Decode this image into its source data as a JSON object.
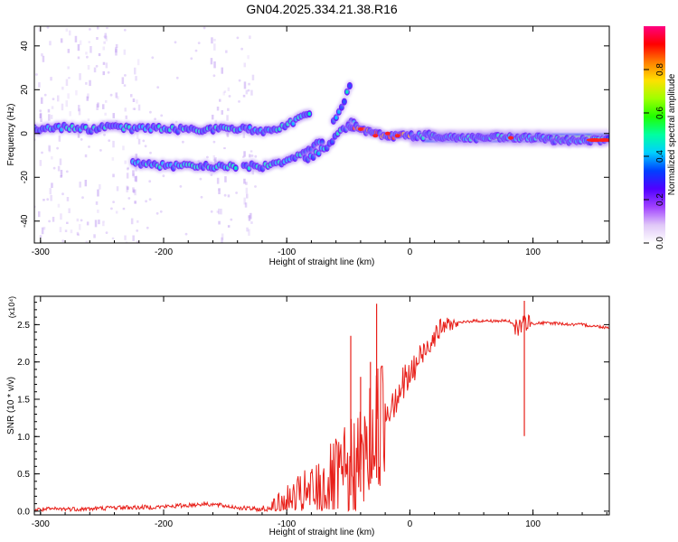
{
  "title": "GN04.2025.334.21.38.R16",
  "chart_data": [
    {
      "type": "heatmap",
      "title": "",
      "xlabel": "Height of straight line (km)",
      "ylabel": "Frequency (Hz)",
      "xlim": [
        -305,
        162
      ],
      "ylim": [
        -50,
        49
      ],
      "x_ticks": [
        -300,
        -200,
        -100,
        0,
        100
      ],
      "y_ticks": [
        -40,
        -20,
        0,
        20,
        40
      ],
      "colorbar": {
        "label": "Normalized spectral amplitude",
        "range": [
          0,
          1
        ],
        "ticks": [
          0.0,
          0.2,
          0.4,
          0.6,
          0.8
        ],
        "tick_labels": [
          "0.0",
          "0.2",
          "0.4",
          "0.6",
          "0.8"
        ],
        "colors": [
          "#ffffff",
          "#e0c8f8",
          "#a040ff",
          "#5000ff",
          "#0040ff",
          "#00d0ff",
          "#00ffa0",
          "#20ff00",
          "#a0ff00",
          "#ffe000",
          "#ff8000",
          "#ff0000",
          "#ff0080"
        ]
      },
      "traces": [
        {
          "name": "",
          "x": [
            -305,
            -280,
            -260,
            -240,
            -225,
            -215,
            -200,
            -185,
            -170,
            -150,
            -140,
            -130
          ],
          "y": [
            2,
            3,
            2,
            3,
            2,
            3,
            2,
            2,
            2,
            2,
            2,
            2
          ]
        },
        {
          "name": "",
          "x": [
            -225,
            -210,
            -195,
            -180,
            -165,
            -150,
            -140
          ],
          "y": [
            -13,
            -14,
            -15,
            -15,
            -15,
            -15,
            -15
          ]
        },
        {
          "name": "",
          "x": [
            -135,
            -120,
            -105,
            -95,
            -85,
            -75,
            -70
          ],
          "y": [
            -15,
            -15,
            -13,
            -11,
            -8,
            -5,
            -3
          ]
        },
        {
          "name": "",
          "x": [
            -130,
            -120,
            -110,
            -100,
            -90,
            -80
          ],
          "y": [
            2,
            1,
            2,
            4,
            7,
            10
          ]
        },
        {
          "name": "",
          "x": [
            -85,
            -75,
            -68,
            -62,
            -58,
            -52,
            -48,
            -44
          ],
          "y": [
            -12,
            -9,
            -6,
            -3,
            0,
            3,
            5,
            4
          ]
        },
        {
          "name": "",
          "x": [
            -62,
            -58,
            -55,
            -52,
            -50,
            -48
          ],
          "y": [
            6,
            9,
            12,
            16,
            20,
            23
          ]
        },
        {
          "name": "",
          "x": [
            -50,
            -40,
            -30,
            -20,
            -10,
            0,
            20,
            40,
            60,
            80,
            100,
            120,
            140,
            162
          ],
          "y": [
            4,
            2,
            0,
            -1,
            -1,
            -1,
            -1,
            -2,
            -2,
            -2,
            -2,
            -3,
            -3,
            -3
          ]
        }
      ]
    },
    {
      "type": "line",
      "title": "",
      "xlabel": "Height of straight line (km)",
      "ylabel": "SNR (10 * v/v)",
      "y_multiplier": "(x10⁴)",
      "xlim": [
        -305,
        162
      ],
      "ylim": [
        -0.05,
        2.88
      ],
      "x_ticks": [
        -300,
        -200,
        -100,
        0,
        100
      ],
      "y_ticks": [
        0.0,
        0.5,
        1.0,
        1.5,
        2.0,
        2.5
      ],
      "y_tick_labels": [
        "0.0",
        "0.5",
        "1.0",
        "1.5",
        "2.0",
        "2.5"
      ],
      "series": [
        {
          "name": "",
          "color": "#e8201a",
          "x": [
            -305,
            -280,
            -260,
            -240,
            -220,
            -200,
            -180,
            -165,
            -150,
            -135,
            -120,
            -110,
            -100,
            -90,
            -80,
            -70,
            -60,
            -50,
            -40,
            -35,
            -30,
            -25,
            -20,
            -15,
            -10,
            -5,
            0,
            5,
            10,
            15,
            20,
            25,
            30,
            40,
            50,
            60,
            70,
            80,
            88,
            92,
            95,
            100,
            110,
            120,
            130,
            140,
            150,
            162
          ],
          "y": [
            0.02,
            0.03,
            0.03,
            0.05,
            0.05,
            0.06,
            0.08,
            0.1,
            0.07,
            0.04,
            0.02,
            0.04,
            0.1,
            0.16,
            0.22,
            0.3,
            0.38,
            0.5,
            0.65,
            0.8,
            1.0,
            1.2,
            1.3,
            1.5,
            1.6,
            1.7,
            1.8,
            1.95,
            2.1,
            2.25,
            2.35,
            2.45,
            2.5,
            2.52,
            2.55,
            2.55,
            2.55,
            2.55,
            2.45,
            2.5,
            2.55,
            2.52,
            2.52,
            2.52,
            2.5,
            2.5,
            2.48,
            2.46
          ]
        }
      ],
      "spikes": [
        {
          "x": -27,
          "y": 2.78
        },
        {
          "x": -48,
          "y": 2.35
        },
        {
          "x": -40,
          "y": 1.8
        },
        {
          "x": -32,
          "y": 2.0
        },
        {
          "x": 93,
          "y": 2.82
        }
      ]
    }
  ]
}
